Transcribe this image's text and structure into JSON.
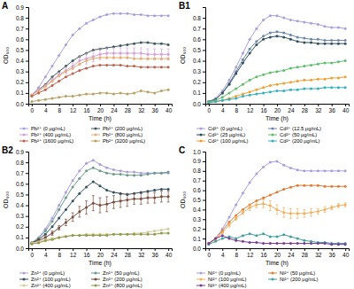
{
  "chart_data": [
    {
      "type": "line",
      "title": "A",
      "xlabel": "Time (h)",
      "ylabel": "OD₆₀₀",
      "marker": "circle",
      "legend": "bottom",
      "grid": false,
      "x": [
        0,
        2,
        4,
        6,
        8,
        10,
        12,
        14,
        16,
        18,
        20,
        22,
        24,
        26,
        28,
        30,
        32,
        34,
        36,
        38,
        40
      ],
      "xlim": [
        -1,
        41
      ],
      "xticks": [
        0,
        4,
        8,
        12,
        16,
        20,
        24,
        28,
        32,
        36,
        40
      ],
      "ylim": [
        0,
        0.9
      ],
      "yticks": [
        {
          "value": 0,
          "label": "0.0"
        },
        0.1,
        0.2,
        0.3,
        0.4,
        0.5,
        0.6,
        0.7,
        0.8,
        0.9
      ],
      "series": [
        {
          "name": "Pb²⁺ (0 μg/mL)",
          "color": "#a99ee0",
          "values": [
            0.08,
            0.15,
            0.25,
            0.35,
            0.45,
            0.55,
            0.64,
            0.7,
            0.75,
            0.78,
            0.81,
            0.83,
            0.84,
            0.84,
            0.84,
            0.83,
            0.83,
            0.82,
            0.82,
            0.82,
            0.82
          ]
        },
        {
          "name": "Pb²⁺ (200 μg/mL)",
          "color": "#3d5a5a",
          "values": [
            0.08,
            0.13,
            0.18,
            0.25,
            0.3,
            0.35,
            0.4,
            0.44,
            0.47,
            0.5,
            0.51,
            0.52,
            0.53,
            0.54,
            0.55,
            0.56,
            0.57,
            0.57,
            0.56,
            0.56,
            0.55
          ]
        },
        {
          "name": "Pb²⁺ (400 μg/mL)",
          "color": "#d4a0d8",
          "values": [
            0.08,
            0.13,
            0.17,
            0.22,
            0.27,
            0.31,
            0.35,
            0.4,
            0.42,
            0.44,
            0.46,
            0.47,
            0.47,
            0.47,
            0.47,
            0.47,
            0.47,
            0.46,
            0.46,
            0.46,
            0.46
          ],
          "errors": [
            0,
            0.01,
            0.01,
            0.02,
            0.02,
            0.03,
            0.03,
            0.04,
            0.05,
            0.05,
            0.05,
            0.05,
            0.05,
            0.05,
            0.05,
            0.05,
            0.05,
            0.05,
            0.05,
            0.05,
            0.05
          ]
        },
        {
          "name": "Pb²⁺ (800 μg/mL)",
          "color": "#e8b070",
          "values": [
            0.08,
            0.12,
            0.16,
            0.21,
            0.26,
            0.3,
            0.33,
            0.37,
            0.4,
            0.42,
            0.43,
            0.43,
            0.43,
            0.43,
            0.43,
            0.42,
            0.42,
            0.42,
            0.42,
            0.42,
            0.42
          ]
        },
        {
          "name": "Pb²⁺ (1600 μg/mL)",
          "color": "#c0604a",
          "values": [
            0.07,
            0.1,
            0.13,
            0.17,
            0.21,
            0.25,
            0.28,
            0.31,
            0.33,
            0.35,
            0.36,
            0.36,
            0.36,
            0.36,
            0.35,
            0.35,
            0.34,
            0.34,
            0.34,
            0.34,
            0.34
          ]
        },
        {
          "name": "Pb²⁺ (3200 μg/mL)",
          "color": "#b8a060",
          "values": [
            0.02,
            0.03,
            0.04,
            0.05,
            0.06,
            0.07,
            0.07,
            0.08,
            0.09,
            0.09,
            0.1,
            0.1,
            0.09,
            0.1,
            0.09,
            0.1,
            0.12,
            0.11,
            0.1,
            0.12,
            0.13
          ]
        }
      ]
    },
    {
      "type": "line",
      "title": "B1",
      "xlabel": "Time (h)",
      "ylabel": "OD₆₀₀",
      "marker": "circle",
      "legend": "bottom",
      "grid": false,
      "x": [
        0,
        2,
        4,
        6,
        8,
        10,
        12,
        14,
        16,
        18,
        20,
        22,
        24,
        26,
        28,
        30,
        32,
        34,
        36,
        38,
        40
      ],
      "xlim": [
        -1,
        41
      ],
      "xticks": [
        0,
        4,
        8,
        12,
        16,
        20,
        24,
        28,
        32,
        36,
        40
      ],
      "ylim": [
        0,
        0.9
      ],
      "yticks": [
        {
          "value": 0,
          "label": "0.0"
        },
        0.1,
        0.2,
        0.3,
        0.4,
        0.5,
        0.6,
        0.7,
        0.8
      ],
      "series": [
        {
          "name": "Cd²⁺ (0 μg/mL)",
          "color": "#a99ee0",
          "values": [
            0.02,
            0.05,
            0.12,
            0.22,
            0.34,
            0.47,
            0.6,
            0.7,
            0.78,
            0.82,
            0.82,
            0.8,
            0.78,
            0.77,
            0.76,
            0.75,
            0.74,
            0.72,
            0.71,
            0.71,
            0.7
          ]
        },
        {
          "name": "Cd²⁺ (12.5 μg/mL)",
          "color": "#6a86a8",
          "values": [
            0.02,
            0.04,
            0.1,
            0.19,
            0.3,
            0.41,
            0.51,
            0.58,
            0.63,
            0.66,
            0.67,
            0.66,
            0.64,
            0.62,
            0.61,
            0.6,
            0.6,
            0.59,
            0.59,
            0.59,
            0.59
          ]
        },
        {
          "name": "Cd²⁺ (25 μg/mL)",
          "color": "#2f4f5f",
          "values": [
            0.02,
            0.04,
            0.1,
            0.18,
            0.28,
            0.38,
            0.47,
            0.55,
            0.6,
            0.62,
            0.63,
            0.62,
            0.6,
            0.58,
            0.57,
            0.57,
            0.56,
            0.56,
            0.56,
            0.56,
            0.56
          ]
        },
        {
          "name": "Cd²⁺ (50 μg/mL)",
          "color": "#5cbf6a",
          "values": [
            0.02,
            0.03,
            0.06,
            0.1,
            0.14,
            0.18,
            0.22,
            0.25,
            0.27,
            0.29,
            0.3,
            0.31,
            0.33,
            0.34,
            0.35,
            0.36,
            0.37,
            0.38,
            0.38,
            0.39,
            0.4
          ]
        },
        {
          "name": "Cd²⁺ (100 μg/mL)",
          "color": "#f0a030",
          "values": [
            0.01,
            0.02,
            0.03,
            0.05,
            0.07,
            0.09,
            0.11,
            0.13,
            0.15,
            0.17,
            0.18,
            0.19,
            0.2,
            0.21,
            0.22,
            0.22,
            0.23,
            0.23,
            0.24,
            0.24,
            0.25
          ]
        },
        {
          "name": "Cd²⁺ (200 μg/mL)",
          "color": "#30b0c0",
          "values": [
            0.01,
            0.02,
            0.03,
            0.04,
            0.05,
            0.07,
            0.08,
            0.09,
            0.1,
            0.11,
            0.12,
            0.12,
            0.13,
            0.13,
            0.14,
            0.14,
            0.14,
            0.15,
            0.15,
            0.15,
            0.15
          ]
        }
      ]
    },
    {
      "type": "line",
      "title": "B2",
      "xlabel": "Time (h)",
      "ylabel": "OD₆₀₀",
      "marker": "circle",
      "legend": "bottom",
      "grid": false,
      "x": [
        0,
        2,
        4,
        6,
        8,
        10,
        12,
        14,
        16,
        18,
        20,
        22,
        24,
        26,
        28,
        30,
        32,
        34,
        36,
        38,
        40
      ],
      "xlim": [
        -1,
        41
      ],
      "xticks": [
        0,
        4,
        8,
        12,
        16,
        20,
        24,
        28,
        32,
        36,
        40
      ],
      "ylim": [
        0,
        0.9
      ],
      "yticks": [
        {
          "value": 0,
          "label": "0.0"
        },
        0.1,
        0.2,
        0.3,
        0.4,
        0.5,
        0.6,
        0.7,
        0.8,
        0.9
      ],
      "series": [
        {
          "name": "Zn²⁺ (0 μg/mL)",
          "color": "#a99ee0",
          "values": [
            0.05,
            0.1,
            0.18,
            0.28,
            0.4,
            0.52,
            0.63,
            0.72,
            0.79,
            0.82,
            0.78,
            0.75,
            0.73,
            0.72,
            0.71,
            0.71,
            0.7,
            0.7,
            0.7,
            0.7,
            0.7
          ]
        },
        {
          "name": "Zn²⁺ (50 μg/mL)",
          "color": "#6a9a8a",
          "values": [
            0.05,
            0.09,
            0.16,
            0.25,
            0.36,
            0.47,
            0.57,
            0.65,
            0.72,
            0.75,
            0.72,
            0.7,
            0.69,
            0.69,
            0.68,
            0.68,
            0.68,
            0.69,
            0.7,
            0.7,
            0.71
          ]
        },
        {
          "name": "Zn²⁺ (100 μg/mL)",
          "color": "#2f4f5f",
          "values": [
            0.05,
            0.08,
            0.13,
            0.2,
            0.28,
            0.36,
            0.44,
            0.51,
            0.57,
            0.62,
            0.58,
            0.54,
            0.52,
            0.51,
            0.5,
            0.51,
            0.52,
            0.53,
            0.54,
            0.55,
            0.55
          ]
        },
        {
          "name": "Zn²⁺ (200 μg/mL)",
          "color": "#7a4a3a",
          "values": [
            0.05,
            0.07,
            0.1,
            0.14,
            0.19,
            0.24,
            0.29,
            0.34,
            0.38,
            0.42,
            0.4,
            0.41,
            0.43,
            0.44,
            0.45,
            0.46,
            0.46,
            0.47,
            0.47,
            0.48,
            0.48
          ],
          "errors": [
            0,
            0.01,
            0.01,
            0.02,
            0.02,
            0.03,
            0.04,
            0.05,
            0.06,
            0.07,
            0.07,
            0.07,
            0.06,
            0.06,
            0.06,
            0.05,
            0.05,
            0.05,
            0.05,
            0.05,
            0.05
          ]
        },
        {
          "name": "Zn²⁺ (400 μg/mL)",
          "color": "#d8c89a",
          "values": [
            0.05,
            0.06,
            0.08,
            0.09,
            0.1,
            0.11,
            0.12,
            0.12,
            0.13,
            0.13,
            0.13,
            0.13,
            0.13,
            0.13,
            0.13,
            0.14,
            0.14,
            0.15,
            0.16,
            0.17,
            0.18
          ]
        },
        {
          "name": "Zn²⁺ (800 μg/mL)",
          "color": "#8a9a4a",
          "values": [
            0.04,
            0.05,
            0.07,
            0.08,
            0.1,
            0.11,
            0.12,
            0.12,
            0.12,
            0.12,
            0.12,
            0.12,
            0.13,
            0.13,
            0.13,
            0.13,
            0.13,
            0.13,
            0.13,
            0.14,
            0.14
          ]
        }
      ]
    },
    {
      "type": "line",
      "title": "C",
      "xlabel": "Time (h)",
      "ylabel": "OD₆₀₀",
      "marker": "circle",
      "legend": "bottom",
      "grid": false,
      "x": [
        0,
        2,
        4,
        6,
        8,
        10,
        12,
        14,
        16,
        18,
        20,
        22,
        24,
        26,
        28,
        30,
        32,
        34,
        36,
        38,
        40
      ],
      "xlim": [
        -1,
        41
      ],
      "xticks": [
        0,
        4,
        8,
        12,
        16,
        20,
        24,
        28,
        32,
        36,
        40
      ],
      "ylim": [
        0,
        1.0
      ],
      "yticks": [
        {
          "value": 0,
          "label": "0.0"
        },
        0.1,
        0.2,
        0.3,
        0.4,
        0.5,
        0.6,
        0.7,
        0.8,
        0.9,
        {
          "value": 1.0,
          "label": "1.0"
        }
      ],
      "series": [
        {
          "name": "Ni²⁺ (0 μg/mL)",
          "color": "#a99ee0",
          "values": [
            0.05,
            0.1,
            0.2,
            0.32,
            0.45,
            0.57,
            0.68,
            0.77,
            0.84,
            0.89,
            0.9,
            0.86,
            0.83,
            0.81,
            0.8,
            0.8,
            0.8,
            0.8,
            0.8,
            0.8,
            0.8
          ]
        },
        {
          "name": "Ni²⁺ (50 μg/mL)",
          "color": "#e07a30",
          "values": [
            0.05,
            0.1,
            0.18,
            0.27,
            0.34,
            0.4,
            0.45,
            0.49,
            0.52,
            0.55,
            0.58,
            0.61,
            0.63,
            0.65,
            0.65,
            0.65,
            0.65,
            0.64,
            0.64,
            0.64,
            0.64
          ]
        },
        {
          "name": "Ni²⁺ (100 μg/mL)",
          "color": "#f0b060",
          "values": [
            0.05,
            0.09,
            0.16,
            0.24,
            0.31,
            0.37,
            0.42,
            0.45,
            0.46,
            0.44,
            0.4,
            0.37,
            0.36,
            0.36,
            0.36,
            0.37,
            0.38,
            0.4,
            0.42,
            0.44,
            0.45
          ],
          "errors": [
            0,
            0.01,
            0.01,
            0.02,
            0.02,
            0.02,
            0.03,
            0.03,
            0.04,
            0.05,
            0.05,
            0.05,
            0.05,
            0.05,
            0.04,
            0.04,
            0.03,
            0.03,
            0.02,
            0.02,
            0.02
          ]
        },
        {
          "name": "Ni²⁺ (200 μg/mL)",
          "color": "#40a0a0",
          "values": [
            0.04,
            0.07,
            0.1,
            0.12,
            0.1,
            0.13,
            0.15,
            0.13,
            0.15,
            0.12,
            0.12,
            0.14,
            0.12,
            0.1,
            0.08,
            0.07,
            0.06,
            0.06,
            0.05,
            0.05,
            0.05
          ]
        },
        {
          "name": "Ni²⁺ (400 μg/mL)",
          "color": "#7a3a9a",
          "values": [
            0.05,
            0.1,
            0.13,
            0.1,
            0.08,
            0.07,
            0.06,
            0.06,
            0.05,
            0.05,
            0.05,
            0.05,
            0.05,
            0.05,
            0.05,
            0.05,
            0.05,
            0.05,
            0.04,
            0.04,
            0.04
          ]
        }
      ]
    }
  ]
}
